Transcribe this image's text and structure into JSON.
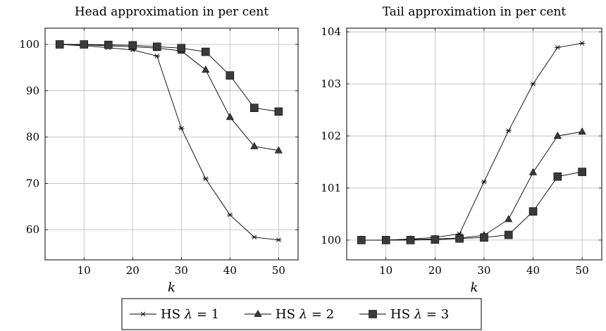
{
  "chart_data": [
    {
      "type": "line",
      "title": "Head approximation in per cent",
      "xlabel": "k",
      "ylabel": "",
      "xlim": [
        2,
        54
      ],
      "ylim": [
        53.5,
        103.5
      ],
      "xticks": [
        10,
        20,
        30,
        40,
        50
      ],
      "yticks": [
        60,
        70,
        80,
        90,
        100
      ],
      "grid": true,
      "x": [
        5,
        10,
        15,
        20,
        25,
        30,
        35,
        40,
        45,
        50
      ],
      "series": [
        {
          "name": "HS λ = 1",
          "marker": "star",
          "values": [
            100,
            99.7,
            99.3,
            98.8,
            97.5,
            81.9,
            71.0,
            63.2,
            58.4,
            57.8
          ]
        },
        {
          "name": "HS λ = 2",
          "marker": "triangle",
          "values": [
            100,
            99.9,
            99.7,
            99.5,
            99.2,
            98.6,
            94.5,
            84.3,
            78.0,
            77.1
          ]
        },
        {
          "name": "HS λ = 3",
          "marker": "square",
          "values": [
            100,
            100,
            99.9,
            99.8,
            99.5,
            99.2,
            98.4,
            93.3,
            86.3,
            85.5
          ]
        }
      ]
    },
    {
      "type": "line",
      "title": "Tail approximation in per cent",
      "xlabel": "k",
      "ylabel": "",
      "xlim": [
        2,
        54
      ],
      "ylim": [
        99.62,
        104.07
      ],
      "xticks": [
        10,
        20,
        30,
        40,
        50
      ],
      "yticks": [
        100,
        101,
        102,
        103,
        104
      ],
      "grid": true,
      "x": [
        5,
        10,
        15,
        20,
        25,
        30,
        35,
        40,
        45,
        50
      ],
      "series": [
        {
          "name": "HS λ = 1",
          "marker": "star",
          "values": [
            100,
            100,
            100.02,
            100.05,
            100.12,
            101.12,
            102.1,
            103.0,
            103.7,
            103.78
          ]
        },
        {
          "name": "HS λ = 2",
          "marker": "triangle",
          "values": [
            100,
            100,
            100.01,
            100.02,
            100.04,
            100.09,
            100.4,
            101.3,
            102.0,
            102.08
          ]
        },
        {
          "name": "HS λ = 3",
          "marker": "square",
          "values": [
            100,
            100,
            100,
            100.01,
            100.03,
            100.05,
            100.1,
            100.55,
            101.22,
            101.31
          ]
        }
      ]
    }
  ],
  "legend": {
    "items": [
      {
        "prefix": "HS ",
        "symbol": "λ",
        "suffix": " = 1",
        "marker": "star"
      },
      {
        "prefix": "HS ",
        "symbol": "λ",
        "suffix": " = 2",
        "marker": "triangle"
      },
      {
        "prefix": "HS ",
        "symbol": "λ",
        "suffix": " = 3",
        "marker": "square"
      }
    ]
  },
  "colors": {
    "line": "#000000",
    "marker_fill": "#3a3a3a",
    "grid": "#b8b8b8",
    "axis": "#000000"
  }
}
